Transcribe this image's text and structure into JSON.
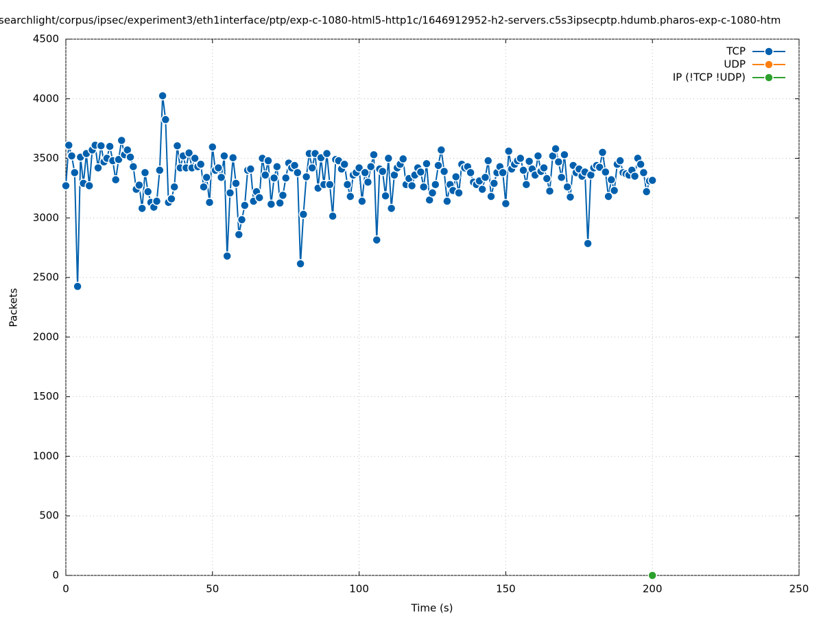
{
  "chart_data": {
    "type": "line",
    "title": "searchlight/corpus/ipsec/experiment3/eth1interface/ptp/exp-c-1080-html5-http1c/1646912952-h2-servers.c5s3ipsecptp.hdumb.pharos-exp-c-1080-htm",
    "x_label": "Time (s)",
    "y_label": "Packets",
    "xlim": [
      0,
      250
    ],
    "xticks": [
      0,
      50,
      100,
      150,
      200,
      250
    ],
    "ylim": [
      0,
      4500
    ],
    "yticks": [
      0,
      500,
      1000,
      1500,
      2000,
      2500,
      3000,
      3500,
      4000,
      4500
    ],
    "grid": true,
    "legend": "top-right",
    "series": [
      {
        "name": "TCP",
        "color": "#0060ad",
        "x": [
          0,
          1,
          2,
          3,
          4,
          5,
          6,
          7,
          8,
          9,
          10,
          11,
          12,
          13,
          14,
          15,
          16,
          17,
          18,
          19,
          20,
          21,
          22,
          23,
          24,
          25,
          26,
          27,
          28,
          29,
          30,
          31,
          32,
          33,
          34,
          35,
          36,
          37,
          38,
          39,
          40,
          41,
          42,
          43,
          44,
          45,
          46,
          47,
          48,
          49,
          50,
          51,
          52,
          53,
          54,
          55,
          56,
          57,
          58,
          59,
          60,
          61,
          62,
          63,
          64,
          65,
          66,
          67,
          68,
          69,
          70,
          71,
          72,
          73,
          74,
          75,
          76,
          77,
          78,
          79,
          80,
          81,
          82,
          83,
          84,
          85,
          86,
          87,
          88,
          89,
          90,
          91,
          92,
          93,
          94,
          95,
          96,
          97,
          98,
          99,
          100,
          101,
          102,
          103,
          104,
          105,
          106,
          107,
          108,
          109,
          110,
          111,
          112,
          113,
          114,
          115,
          116,
          117,
          118,
          119,
          120,
          121,
          122,
          123,
          124,
          125,
          126,
          127,
          128,
          129,
          130,
          131,
          132,
          133,
          134,
          135,
          136,
          137,
          138,
          139,
          140,
          141,
          142,
          143,
          144,
          145,
          146,
          147,
          148,
          149,
          150,
          151,
          152,
          153,
          154,
          155,
          156,
          157,
          158,
          159,
          160,
          161,
          162,
          163,
          164,
          165,
          166,
          167,
          168,
          169,
          170,
          171,
          172,
          173,
          174,
          175,
          176,
          177,
          178,
          179,
          180,
          181,
          182,
          183,
          184,
          185,
          186,
          187,
          188,
          189,
          190,
          191,
          192,
          193,
          194,
          195,
          196,
          197,
          198,
          199,
          200
        ],
        "values": [
          3270,
          3610,
          3520,
          3380,
          2425,
          3510,
          3290,
          3540,
          3270,
          3570,
          3610,
          3420,
          3605,
          3470,
          3500,
          3600,
          3480,
          3320,
          3490,
          3650,
          3530,
          3570,
          3510,
          3430,
          3240,
          3275,
          3080,
          3380,
          3220,
          3130,
          3090,
          3140,
          3400,
          4025,
          3825,
          3130,
          3160,
          3260,
          3605,
          3420,
          3520,
          3420,
          3545,
          3420,
          3500,
          3430,
          3450,
          3260,
          3340,
          3130,
          3595,
          3400,
          3420,
          3340,
          3520,
          2680,
          3210,
          3505,
          3290,
          2860,
          2985,
          3105,
          3400,
          3410,
          3140,
          3220,
          3170,
          3500,
          3360,
          3480,
          3115,
          3335,
          3430,
          3125,
          3190,
          3335,
          3460,
          3420,
          3440,
          3380,
          2615,
          3030,
          3345,
          3540,
          3420,
          3540,
          3250,
          3505,
          3280,
          3540,
          3280,
          3015,
          3490,
          3480,
          3410,
          3450,
          3280,
          3180,
          3360,
          3380,
          3420,
          3140,
          3380,
          3300,
          3430,
          3530,
          2815,
          3410,
          3390,
          3185,
          3500,
          3080,
          3360,
          3420,
          3450,
          3495,
          3280,
          3330,
          3270,
          3360,
          3420,
          3385,
          3260,
          3455,
          3150,
          3210,
          3280,
          3440,
          3570,
          3390,
          3140,
          3280,
          3230,
          3345,
          3210,
          3450,
          3420,
          3430,
          3380,
          3300,
          3280,
          3310,
          3240,
          3340,
          3480,
          3180,
          3290,
          3380,
          3430,
          3380,
          3120,
          3560,
          3410,
          3450,
          3480,
          3500,
          3400,
          3280,
          3475,
          3410,
          3360,
          3520,
          3390,
          3420,
          3330,
          3225,
          3520,
          3580,
          3470,
          3340,
          3530,
          3260,
          3175,
          3440,
          3380,
          3410,
          3350,
          3385,
          2785,
          3360,
          3420,
          3440,
          3425,
          3550,
          3385,
          3180,
          3320,
          3230,
          3450,
          3480,
          3380,
          3370,
          3360,
          3400,
          3350,
          3500,
          3450,
          3380,
          3220,
          3310,
          3315
        ]
      },
      {
        "name": "UDP",
        "color": "#ff7f0e",
        "x": [
          200
        ],
        "values": [
          0
        ]
      },
      {
        "name": "IP (!TCP  !UDP)",
        "color": "#2ca02c",
        "x": [
          200
        ],
        "values": [
          0
        ]
      }
    ]
  }
}
